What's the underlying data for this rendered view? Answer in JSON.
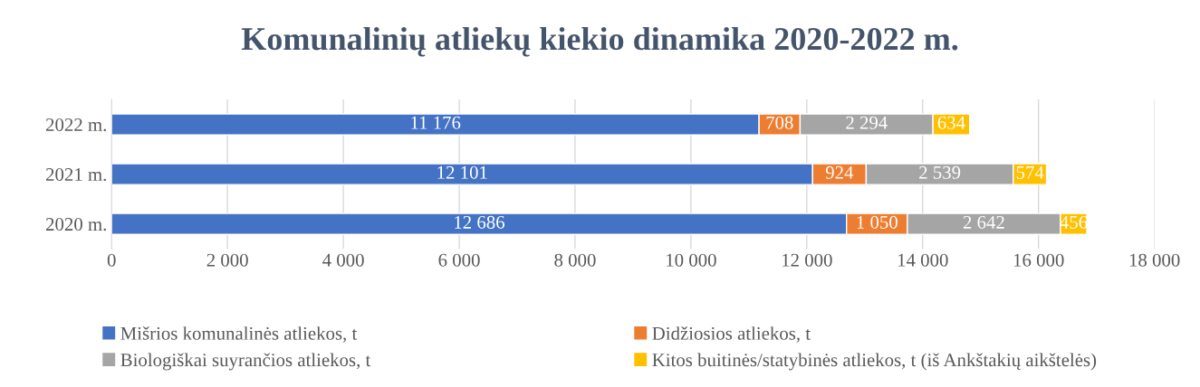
{
  "chart_data": {
    "type": "bar",
    "orientation": "horizontal",
    "stacked": true,
    "title": "Komunalinių atliekų kiekio dinamika 2020-2022 m.",
    "categories": [
      "2022 m.",
      "2021 m.",
      "2020 m."
    ],
    "series": [
      {
        "name": "Mišrios komunalinės atliekos, t",
        "color": "#4472c4",
        "values": [
          11176,
          12101,
          12686
        ],
        "value_labels": [
          "11 176",
          "12 101",
          "12 686"
        ]
      },
      {
        "name": "Didžiosios atliekos, t",
        "color": "#ed7d31",
        "values": [
          708,
          924,
          1050
        ],
        "value_labels": [
          "708",
          "924",
          "1 050"
        ]
      },
      {
        "name": "Biologiškai suyrančios atliekos, t",
        "color": "#a5a5a5",
        "values": [
          2294,
          2539,
          2642
        ],
        "value_labels": [
          "2 294",
          "2 539",
          "2 642"
        ]
      },
      {
        "name": "Kitos buitinės/statybinės atliekos, t (iš Ankštakių aikštelės)",
        "color": "#ffc000",
        "values": [
          634,
          574,
          456
        ],
        "value_labels": [
          "634",
          "574",
          "456"
        ]
      }
    ],
    "xlim": [
      0,
      18000
    ],
    "xticks": [
      0,
      {
        "value": 2000,
        "label": "2 000"
      },
      {
        "value": 4000,
        "label": "4 000"
      },
      {
        "value": 6000,
        "label": "6 000"
      },
      {
        "value": 8000,
        "label": "8 000"
      },
      {
        "value": 10000,
        "label": "10 000"
      },
      {
        "value": 12000,
        "label": "12 000"
      },
      {
        "value": 14000,
        "label": "14 000"
      },
      {
        "value": 16000,
        "label": "16 000"
      },
      {
        "value": 18000,
        "label": "18 000"
      }
    ],
    "grid": "x",
    "legend": "bottom"
  }
}
